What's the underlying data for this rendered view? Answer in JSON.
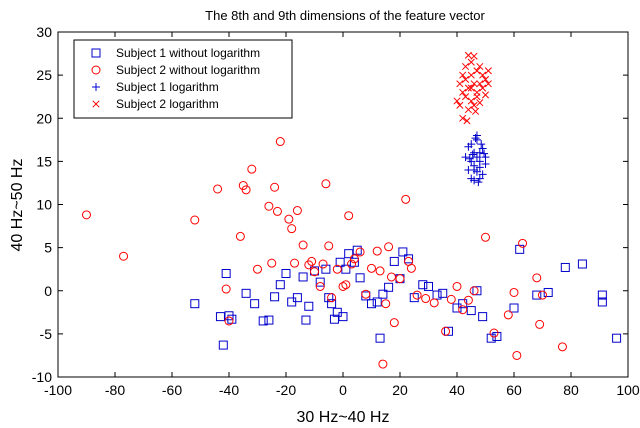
{
  "chart_data": {
    "type": "scatter",
    "title": "The 8th and 9th dimensions of the feature vector",
    "xlabel": "30 Hz~40 Hz",
    "ylabel": "40 Hz~50 Hz",
    "xlim": [
      -100,
      100
    ],
    "ylim": [
      -10,
      30
    ],
    "xticks": [
      -100,
      -80,
      -60,
      -40,
      -20,
      0,
      20,
      40,
      60,
      80,
      100
    ],
    "yticks": [
      -10,
      -5,
      0,
      5,
      10,
      15,
      20,
      25,
      30
    ],
    "grid": false,
    "legend_position": "top-left",
    "series": [
      {
        "name": "Subject 1 without logarithm",
        "marker": "square",
        "color": "#0000cc",
        "points": [
          [
            -52,
            -1.5
          ],
          [
            -42,
            -6.3
          ],
          [
            -43,
            -3
          ],
          [
            -40,
            -2.9
          ],
          [
            -39,
            -3.3
          ],
          [
            -41,
            2
          ],
          [
            -34,
            -0.3
          ],
          [
            -31,
            -1.5
          ],
          [
            -28,
            -3.5
          ],
          [
            -26,
            -3.4
          ],
          [
            -24,
            -0.7
          ],
          [
            -22,
            0.7
          ],
          [
            -20,
            2
          ],
          [
            -18,
            -1.3
          ],
          [
            -16,
            -0.8
          ],
          [
            -14,
            1.6
          ],
          [
            -13,
            -3.4
          ],
          [
            -12,
            -1.8
          ],
          [
            -10,
            2.3
          ],
          [
            -8,
            1
          ],
          [
            -6,
            2.5
          ],
          [
            -5,
            -0.8
          ],
          [
            -4,
            -1.5
          ],
          [
            -3,
            -3.3
          ],
          [
            -2,
            -2.5
          ],
          [
            -1,
            3.3
          ],
          [
            0,
            -3
          ],
          [
            1,
            2.5
          ],
          [
            2,
            4.3
          ],
          [
            4,
            3.3
          ],
          [
            5,
            4.7
          ],
          [
            6,
            1.5
          ],
          [
            8,
            -0.6
          ],
          [
            10,
            -1.5
          ],
          [
            12,
            -1.3
          ],
          [
            13,
            -5.5
          ],
          [
            14,
            -0.4
          ],
          [
            16,
            0.4
          ],
          [
            18,
            3.4
          ],
          [
            20,
            1.4
          ],
          [
            21,
            4.5
          ],
          [
            23,
            3.7
          ],
          [
            25,
            -0.8
          ],
          [
            28,
            0.7
          ],
          [
            30,
            0.5
          ],
          [
            33,
            -0.5
          ],
          [
            35,
            -0.3
          ],
          [
            37,
            -4.7
          ],
          [
            40,
            -2
          ],
          [
            42,
            -1.5
          ],
          [
            45,
            -2.3
          ],
          [
            47,
            0
          ],
          [
            49,
            -3
          ],
          [
            52,
            -5.5
          ],
          [
            54,
            -5.3
          ],
          [
            60,
            -2
          ],
          [
            62,
            4.8
          ],
          [
            68,
            -0.5
          ],
          [
            72,
            -0.2
          ],
          [
            78,
            2.7
          ],
          [
            84,
            3.1
          ],
          [
            91,
            -0.5
          ],
          [
            91,
            -1.3
          ],
          [
            96,
            -5.5
          ]
        ]
      },
      {
        "name": "Subject 2 without logarithm",
        "marker": "circle",
        "color": "#ff0000",
        "points": [
          [
            -90,
            8.8
          ],
          [
            -77,
            4
          ],
          [
            -52,
            8.2
          ],
          [
            -44,
            11.8
          ],
          [
            -41,
            0.2
          ],
          [
            -40,
            -3.5
          ],
          [
            -36,
            6.3
          ],
          [
            -35,
            12.2
          ],
          [
            -34,
            11.7
          ],
          [
            -32,
            14.1
          ],
          [
            -30,
            2.5
          ],
          [
            -26,
            9.8
          ],
          [
            -25,
            3.2
          ],
          [
            -24,
            12
          ],
          [
            -23,
            9.2
          ],
          [
            -22,
            17.3
          ],
          [
            -19,
            8.3
          ],
          [
            -18,
            7.2
          ],
          [
            -17,
            3.2
          ],
          [
            -16,
            9.3
          ],
          [
            -14,
            5.3
          ],
          [
            -12,
            3
          ],
          [
            -11,
            3.4
          ],
          [
            -10,
            2.2
          ],
          [
            -8,
            0.5
          ],
          [
            -7,
            3.1
          ],
          [
            -6,
            12.4
          ],
          [
            -5,
            5.2
          ],
          [
            -4,
            -0.8
          ],
          [
            -2,
            2.5
          ],
          [
            0,
            0.5
          ],
          [
            1,
            0.7
          ],
          [
            2,
            8.7
          ],
          [
            3,
            3.1
          ],
          [
            4,
            3.7
          ],
          [
            6,
            4.5
          ],
          [
            8,
            -0.4
          ],
          [
            10,
            2.6
          ],
          [
            12,
            4.6
          ],
          [
            13,
            2.3
          ],
          [
            14,
            -8.5
          ],
          [
            15,
            -1.5
          ],
          [
            16,
            5.1
          ],
          [
            17,
            1.6
          ],
          [
            18,
            -3.7
          ],
          [
            20,
            1.4
          ],
          [
            22,
            10.6
          ],
          [
            23,
            3.4
          ],
          [
            24,
            2.6
          ],
          [
            26,
            -0.5
          ],
          [
            29,
            -0.9
          ],
          [
            32,
            -1.4
          ],
          [
            36,
            -4.7
          ],
          [
            38,
            -1
          ],
          [
            40,
            0.5
          ],
          [
            42,
            -2.2
          ],
          [
            44,
            -1.1
          ],
          [
            46,
            0
          ],
          [
            50,
            6.2
          ],
          [
            53,
            -4.9
          ],
          [
            58,
            -2.8
          ],
          [
            60,
            -0.2
          ],
          [
            61,
            -7.5
          ],
          [
            63,
            5.5
          ],
          [
            68,
            1.5
          ],
          [
            69,
            -3.9
          ],
          [
            70,
            -0.5
          ],
          [
            77,
            -6.5
          ]
        ]
      },
      {
        "name": "Subject 1 logarithm",
        "marker": "plus",
        "color": "#0000cc",
        "points": [
          [
            43,
            15.5
          ],
          [
            44,
            14
          ],
          [
            44,
            16.7
          ],
          [
            45,
            15
          ],
          [
            45,
            13
          ],
          [
            45,
            17
          ],
          [
            46,
            14.5
          ],
          [
            46,
            16
          ],
          [
            46,
            12.8
          ],
          [
            47,
            15.5
          ],
          [
            47,
            17.5
          ],
          [
            47,
            13.8
          ],
          [
            47,
            18
          ],
          [
            48,
            16
          ],
          [
            48,
            14.3
          ],
          [
            48,
            15
          ],
          [
            49,
            16.5
          ],
          [
            49,
            13.5
          ],
          [
            50,
            15.5
          ],
          [
            50,
            14.7
          ],
          [
            45.5,
            15.8
          ],
          [
            46.5,
            17.7
          ],
          [
            48.5,
            17
          ],
          [
            47.5,
            12.6
          ],
          [
            44.5,
            15.3
          ],
          [
            49.5,
            15.9
          ],
          [
            46,
            14
          ],
          [
            48,
            13
          ]
        ]
      },
      {
        "name": "Subject 2 logarithm",
        "marker": "cross",
        "color": "#ff0000",
        "points": [
          [
            40,
            22
          ],
          [
            41,
            24
          ],
          [
            41,
            21.5
          ],
          [
            42,
            23
          ],
          [
            42,
            25
          ],
          [
            42,
            20
          ],
          [
            43,
            22.5
          ],
          [
            43,
            24.5
          ],
          [
            43,
            26
          ],
          [
            44,
            21
          ],
          [
            44,
            23.5
          ],
          [
            44,
            27.3
          ],
          [
            45,
            22
          ],
          [
            45,
            25
          ],
          [
            45,
            26.5
          ],
          [
            45,
            23.5
          ],
          [
            46,
            21.5
          ],
          [
            46,
            24
          ],
          [
            46,
            27.2
          ],
          [
            47,
            22.5
          ],
          [
            47,
            25.5
          ],
          [
            47,
            23
          ],
          [
            48,
            24
          ],
          [
            48,
            21.8
          ],
          [
            48,
            26
          ],
          [
            49,
            23.5
          ],
          [
            49,
            25
          ],
          [
            50,
            22.7
          ],
          [
            50,
            24.5
          ],
          [
            51,
            24
          ],
          [
            51,
            25.5
          ],
          [
            43.5,
            19.7
          ],
          [
            46.5,
            20.8
          ]
        ]
      }
    ]
  }
}
